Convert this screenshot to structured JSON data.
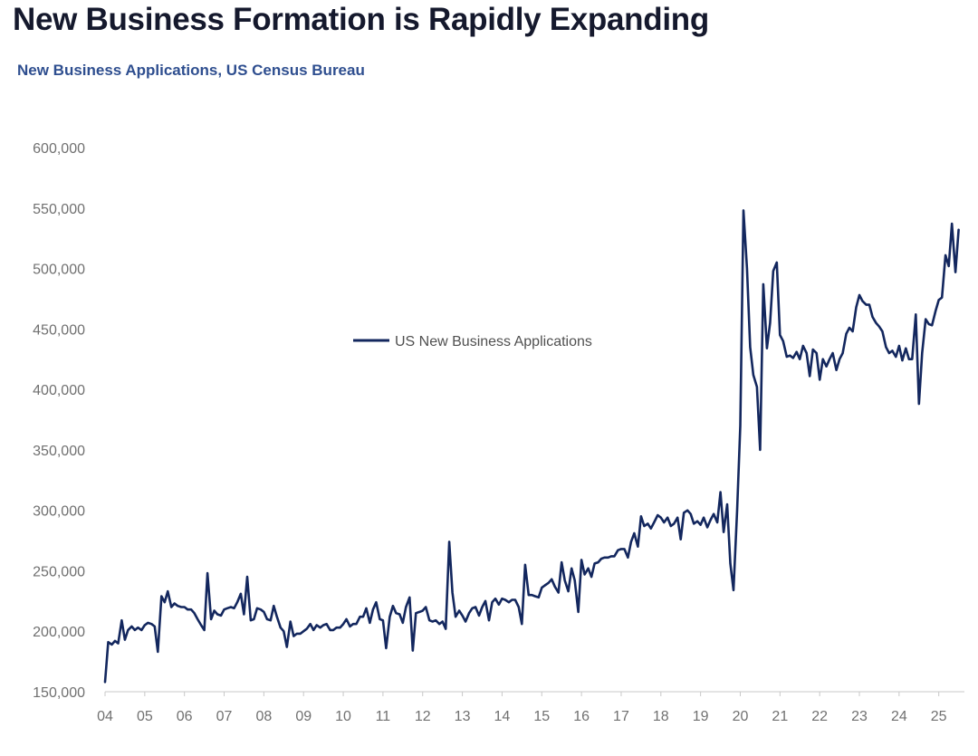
{
  "title": "New Business Formation is Rapidly Expanding",
  "subtitle": "New Business Applications, US Census Bureau",
  "colors": {
    "series": "#13275e",
    "axis": "#c8c8c8",
    "tick_text": "#707070"
  },
  "chart_data": {
    "type": "line",
    "title": "New Business Formation is Rapidly Expanding",
    "subtitle": "New Business Applications, US Census Bureau",
    "xlabel": "",
    "ylabel": "",
    "ylim": [
      150000,
      600000
    ],
    "xlim": [
      2004.0,
      2025.6
    ],
    "grid": false,
    "legend_position": "center",
    "x_tick_labels": [
      "04",
      "05",
      "06",
      "07",
      "08",
      "09",
      "10",
      "11",
      "12",
      "13",
      "14",
      "15",
      "16",
      "17",
      "18",
      "19",
      "20",
      "21",
      "22",
      "23",
      "24",
      "25"
    ],
    "y_tick_labels": [
      "150,000",
      "200,000",
      "250,000",
      "300,000",
      "350,000",
      "400,000",
      "450,000",
      "500,000",
      "550,000",
      "600,000"
    ],
    "y_ticks": [
      150000,
      200000,
      250000,
      300000,
      350000,
      400000,
      450000,
      500000,
      550000,
      600000
    ],
    "series": [
      {
        "name": "US New Business Applications",
        "color": "#13275e",
        "points": [
          [
            2004.0,
            158000
          ],
          [
            2004.08,
            191000
          ],
          [
            2004.17,
            189000
          ],
          [
            2004.25,
            192000
          ],
          [
            2004.33,
            190000
          ],
          [
            2004.42,
            209000
          ],
          [
            2004.5,
            193000
          ],
          [
            2004.58,
            201000
          ],
          [
            2004.67,
            204000
          ],
          [
            2004.75,
            201000
          ],
          [
            2004.83,
            203000
          ],
          [
            2004.92,
            201000
          ],
          [
            2005.0,
            205000
          ],
          [
            2005.08,
            207000
          ],
          [
            2005.17,
            206000
          ],
          [
            2005.25,
            204000
          ],
          [
            2005.33,
            183000
          ],
          [
            2005.42,
            229000
          ],
          [
            2005.5,
            224000
          ],
          [
            2005.58,
            233000
          ],
          [
            2005.67,
            220000
          ],
          [
            2005.75,
            223000
          ],
          [
            2005.83,
            221000
          ],
          [
            2005.92,
            220000
          ],
          [
            2006.0,
            220000
          ],
          [
            2006.08,
            218000
          ],
          [
            2006.17,
            218000
          ],
          [
            2006.25,
            215000
          ],
          [
            2006.33,
            210000
          ],
          [
            2006.42,
            205000
          ],
          [
            2006.5,
            201000
          ],
          [
            2006.58,
            248000
          ],
          [
            2006.67,
            210000
          ],
          [
            2006.75,
            217000
          ],
          [
            2006.83,
            214000
          ],
          [
            2006.92,
            213000
          ],
          [
            2007.0,
            218000
          ],
          [
            2007.08,
            219000
          ],
          [
            2007.17,
            220000
          ],
          [
            2007.25,
            219000
          ],
          [
            2007.33,
            224000
          ],
          [
            2007.42,
            231000
          ],
          [
            2007.5,
            214000
          ],
          [
            2007.58,
            245000
          ],
          [
            2007.67,
            209000
          ],
          [
            2007.75,
            210000
          ],
          [
            2007.83,
            219000
          ],
          [
            2007.92,
            218000
          ],
          [
            2008.0,
            216000
          ],
          [
            2008.08,
            210000
          ],
          [
            2008.17,
            209000
          ],
          [
            2008.25,
            221000
          ],
          [
            2008.33,
            212000
          ],
          [
            2008.42,
            203000
          ],
          [
            2008.5,
            200000
          ],
          [
            2008.58,
            187000
          ],
          [
            2008.67,
            208000
          ],
          [
            2008.75,
            196000
          ],
          [
            2008.83,
            198000
          ],
          [
            2008.92,
            198000
          ],
          [
            2009.0,
            200000
          ],
          [
            2009.08,
            202000
          ],
          [
            2009.17,
            206000
          ],
          [
            2009.25,
            201000
          ],
          [
            2009.33,
            205000
          ],
          [
            2009.42,
            203000
          ],
          [
            2009.5,
            205000
          ],
          [
            2009.58,
            206000
          ],
          [
            2009.67,
            201000
          ],
          [
            2009.75,
            201000
          ],
          [
            2009.83,
            203000
          ],
          [
            2009.92,
            203000
          ],
          [
            2010.0,
            206000
          ],
          [
            2010.08,
            210000
          ],
          [
            2010.17,
            204000
          ],
          [
            2010.25,
            206000
          ],
          [
            2010.33,
            206000
          ],
          [
            2010.42,
            212000
          ],
          [
            2010.5,
            212000
          ],
          [
            2010.58,
            219000
          ],
          [
            2010.67,
            207000
          ],
          [
            2010.75,
            218000
          ],
          [
            2010.83,
            224000
          ],
          [
            2010.92,
            210000
          ],
          [
            2011.0,
            209000
          ],
          [
            2011.08,
            186000
          ],
          [
            2011.17,
            212000
          ],
          [
            2011.25,
            221000
          ],
          [
            2011.33,
            215000
          ],
          [
            2011.42,
            214000
          ],
          [
            2011.5,
            207000
          ],
          [
            2011.58,
            220000
          ],
          [
            2011.67,
            228000
          ],
          [
            2011.75,
            184000
          ],
          [
            2011.83,
            215000
          ],
          [
            2011.92,
            216000
          ],
          [
            2012.0,
            217000
          ],
          [
            2012.08,
            220000
          ],
          [
            2012.17,
            209000
          ],
          [
            2012.25,
            208000
          ],
          [
            2012.33,
            209000
          ],
          [
            2012.42,
            206000
          ],
          [
            2012.5,
            208000
          ],
          [
            2012.58,
            202000
          ],
          [
            2012.67,
            274000
          ],
          [
            2012.75,
            232000
          ],
          [
            2012.83,
            212000
          ],
          [
            2012.92,
            217000
          ],
          [
            2013.0,
            213000
          ],
          [
            2013.08,
            208000
          ],
          [
            2013.17,
            215000
          ],
          [
            2013.25,
            219000
          ],
          [
            2013.33,
            220000
          ],
          [
            2013.42,
            213000
          ],
          [
            2013.5,
            220000
          ],
          [
            2013.58,
            225000
          ],
          [
            2013.67,
            209000
          ],
          [
            2013.75,
            224000
          ],
          [
            2013.83,
            227000
          ],
          [
            2013.92,
            222000
          ],
          [
            2014.0,
            227000
          ],
          [
            2014.08,
            226000
          ],
          [
            2014.17,
            224000
          ],
          [
            2014.25,
            226000
          ],
          [
            2014.33,
            226000
          ],
          [
            2014.42,
            220000
          ],
          [
            2014.5,
            206000
          ],
          [
            2014.58,
            255000
          ],
          [
            2014.67,
            230000
          ],
          [
            2014.75,
            230000
          ],
          [
            2014.83,
            229000
          ],
          [
            2014.92,
            228000
          ],
          [
            2015.0,
            236000
          ],
          [
            2015.08,
            238000
          ],
          [
            2015.17,
            240000
          ],
          [
            2015.25,
            243000
          ],
          [
            2015.33,
            237000
          ],
          [
            2015.42,
            232000
          ],
          [
            2015.5,
            257000
          ],
          [
            2015.58,
            242000
          ],
          [
            2015.67,
            233000
          ],
          [
            2015.75,
            252000
          ],
          [
            2015.83,
            242000
          ],
          [
            2015.92,
            216000
          ],
          [
            2016.0,
            259000
          ],
          [
            2016.08,
            247000
          ],
          [
            2016.17,
            252000
          ],
          [
            2016.25,
            245000
          ],
          [
            2016.33,
            256000
          ],
          [
            2016.42,
            257000
          ],
          [
            2016.5,
            260000
          ],
          [
            2016.58,
            261000
          ],
          [
            2016.67,
            261000
          ],
          [
            2016.75,
            262000
          ],
          [
            2016.83,
            262000
          ],
          [
            2016.92,
            267000
          ],
          [
            2017.0,
            268000
          ],
          [
            2017.08,
            268000
          ],
          [
            2017.17,
            261000
          ],
          [
            2017.25,
            274000
          ],
          [
            2017.33,
            281000
          ],
          [
            2017.42,
            270000
          ],
          [
            2017.5,
            295000
          ],
          [
            2017.58,
            287000
          ],
          [
            2017.67,
            289000
          ],
          [
            2017.75,
            285000
          ],
          [
            2017.83,
            290000
          ],
          [
            2017.92,
            296000
          ],
          [
            2018.0,
            294000
          ],
          [
            2018.08,
            290000
          ],
          [
            2018.17,
            294000
          ],
          [
            2018.25,
            287000
          ],
          [
            2018.33,
            289000
          ],
          [
            2018.42,
            294000
          ],
          [
            2018.5,
            276000
          ],
          [
            2018.58,
            298000
          ],
          [
            2018.67,
            300000
          ],
          [
            2018.75,
            297000
          ],
          [
            2018.83,
            289000
          ],
          [
            2018.92,
            291000
          ],
          [
            2019.0,
            288000
          ],
          [
            2019.08,
            294000
          ],
          [
            2019.17,
            286000
          ],
          [
            2019.25,
            292000
          ],
          [
            2019.33,
            297000
          ],
          [
            2019.42,
            290000
          ],
          [
            2019.5,
            315000
          ],
          [
            2019.58,
            282000
          ],
          [
            2019.67,
            305000
          ],
          [
            2019.75,
            256000
          ],
          [
            2019.83,
            234000
          ],
          [
            2019.92,
            300000
          ],
          [
            2020.0,
            370000
          ],
          [
            2020.08,
            548000
          ],
          [
            2020.17,
            500000
          ],
          [
            2020.25,
            435000
          ],
          [
            2020.33,
            412000
          ],
          [
            2020.42,
            402000
          ],
          [
            2020.5,
            350000
          ],
          [
            2020.58,
            487000
          ],
          [
            2020.67,
            434000
          ],
          [
            2020.75,
            455000
          ],
          [
            2020.83,
            498000
          ],
          [
            2020.92,
            505000
          ],
          [
            2021.0,
            445000
          ],
          [
            2021.08,
            440000
          ],
          [
            2021.17,
            427000
          ],
          [
            2021.25,
            428000
          ],
          [
            2021.33,
            426000
          ],
          [
            2021.42,
            431000
          ],
          [
            2021.5,
            425000
          ],
          [
            2021.58,
            436000
          ],
          [
            2021.67,
            430000
          ],
          [
            2021.75,
            411000
          ],
          [
            2021.83,
            433000
          ],
          [
            2021.92,
            430000
          ],
          [
            2022.0,
            408000
          ],
          [
            2022.08,
            425000
          ],
          [
            2022.17,
            419000
          ],
          [
            2022.25,
            425000
          ],
          [
            2022.33,
            430000
          ],
          [
            2022.42,
            416000
          ],
          [
            2022.5,
            425000
          ],
          [
            2022.58,
            430000
          ],
          [
            2022.67,
            446000
          ],
          [
            2022.75,
            451000
          ],
          [
            2022.83,
            448000
          ],
          [
            2022.92,
            468000
          ],
          [
            2023.0,
            478000
          ],
          [
            2023.08,
            473000
          ],
          [
            2023.17,
            470000
          ],
          [
            2023.25,
            470000
          ],
          [
            2023.33,
            460000
          ],
          [
            2023.42,
            455000
          ],
          [
            2023.5,
            452000
          ],
          [
            2023.58,
            448000
          ],
          [
            2023.67,
            435000
          ],
          [
            2023.75,
            430000
          ],
          [
            2023.83,
            432000
          ],
          [
            2023.92,
            427000
          ],
          [
            2024.0,
            436000
          ],
          [
            2024.08,
            424000
          ],
          [
            2024.17,
            434000
          ],
          [
            2024.25,
            425000
          ],
          [
            2024.33,
            425000
          ],
          [
            2024.42,
            462000
          ],
          [
            2024.5,
            388000
          ],
          [
            2024.58,
            430000
          ],
          [
            2024.67,
            458000
          ],
          [
            2024.75,
            454000
          ],
          [
            2024.83,
            453000
          ],
          [
            2024.92,
            465000
          ],
          [
            2025.0,
            474000
          ],
          [
            2025.08,
            476000
          ],
          [
            2025.17,
            511000
          ],
          [
            2025.25,
            502000
          ],
          [
            2025.33,
            537000
          ],
          [
            2025.42,
            497000
          ],
          [
            2025.5,
            532000
          ]
        ]
      }
    ]
  }
}
